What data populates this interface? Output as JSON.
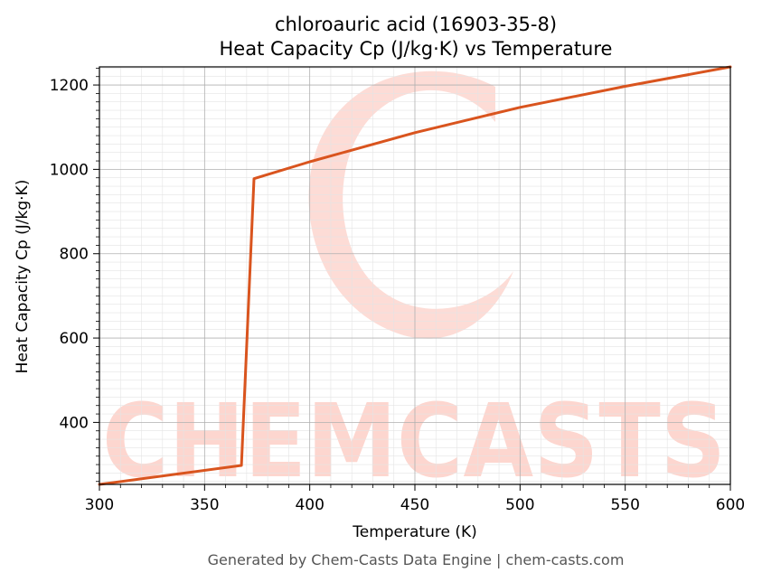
{
  "chart_data": {
    "type": "line",
    "title": "chloroauric acid (16903-35-8)",
    "subtitle": "Heat Capacity Cp (J/kg·K) vs Temperature",
    "xlabel": "Temperature (K)",
    "ylabel": "Heat Capacity Cp (J/kg·K)",
    "xlim": [
      300,
      600
    ],
    "ylim": [
      253,
      1243
    ],
    "xticks": [
      300,
      350,
      400,
      450,
      500,
      550,
      600
    ],
    "yticks": [
      400,
      600,
      800,
      1000,
      1200
    ],
    "grid": true,
    "legend": "none",
    "series": [
      {
        "color": "#d9541e",
        "x": [
          300,
          367.5,
          373.5,
          400,
          450,
          500,
          550,
          600
        ],
        "y": [
          253,
          298,
          978,
          1018,
          1087,
          1147,
          1197,
          1243
        ]
      }
    ]
  },
  "watermark": {
    "text": "CHEMCASTS",
    "color": "#fdd6cf"
  },
  "footer": "Generated by Chem-Casts Data Engine | chem-casts.com"
}
